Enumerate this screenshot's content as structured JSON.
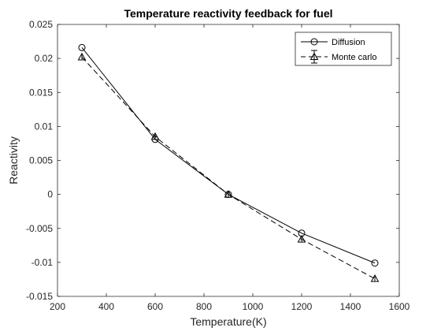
{
  "chart_data": {
    "type": "line",
    "title": "Temperature reactivity feedback for fuel",
    "xlabel": "Temperature(K)",
    "ylabel": "Reactivity",
    "xlim": [
      200,
      1600
    ],
    "ylim": [
      -0.015,
      0.025
    ],
    "xticks": [
      200,
      400,
      600,
      800,
      1000,
      1200,
      1400,
      1600
    ],
    "yticks": [
      -0.015,
      -0.01,
      -0.005,
      0,
      0.005,
      0.01,
      0.015,
      0.02,
      0.025
    ],
    "xtick_labels": [
      "200",
      "400",
      "600",
      "800",
      "1000",
      "1200",
      "1400",
      "1600"
    ],
    "ytick_labels": [
      "-0.015",
      "-0.01",
      "-0.005",
      "0",
      "0.005",
      "0.01",
      "0.015",
      "0.02",
      "0.025"
    ],
    "grid": false,
    "legend_position": "top-right",
    "x": [
      300,
      600,
      900,
      1200,
      1500
    ],
    "series": [
      {
        "name": "Diffusion",
        "values": [
          0.0216,
          0.0081,
          0.0,
          -0.0057,
          -0.0101
        ],
        "marker": "circle",
        "line_style": "solid",
        "color": "#000000"
      },
      {
        "name": "Monte carlo",
        "values": [
          0.0202,
          0.0085,
          0.0,
          -0.0066,
          -0.0124
        ],
        "marker": "triangle",
        "line_style": "dashed",
        "color": "#000000",
        "error_bars": true
      }
    ]
  }
}
